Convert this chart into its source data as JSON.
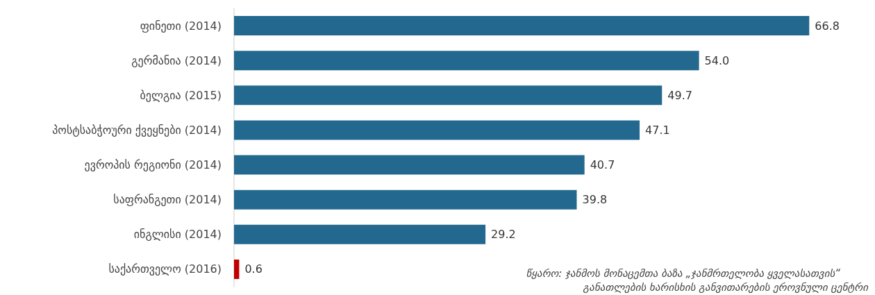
{
  "chart_data": {
    "type": "bar",
    "orientation": "horizontal",
    "categories": [
      "ფინეთი (2014)",
      "გერმანია (2014)",
      "ბელგია (2015)",
      "პოსტსაბჭოური ქვეყნები (2014)",
      "ევროპის რეგიონი (2014)",
      "საფრანგეთი (2014)",
      "ინგლისი (2014)",
      "საქართველო (2016)"
    ],
    "values": [
      66.8,
      54.0,
      49.7,
      47.1,
      40.7,
      39.8,
      29.2,
      0.6
    ],
    "value_labels": [
      "66.8",
      "54.0",
      "49.7",
      "47.1",
      "40.7",
      "39.8",
      "29.2",
      "0.6"
    ],
    "colors": [
      "#23698f",
      "#23698f",
      "#23698f",
      "#23698f",
      "#23698f",
      "#23698f",
      "#23698f",
      "#c00000"
    ],
    "annotations": [
      "წყარო: ჯანმოს მონაცემთა ბაზა „ჯანმრთელობა ყველასათვის“",
      "განათლების ხარისხის განვითარების ეროვნული ცენტრი"
    ]
  }
}
